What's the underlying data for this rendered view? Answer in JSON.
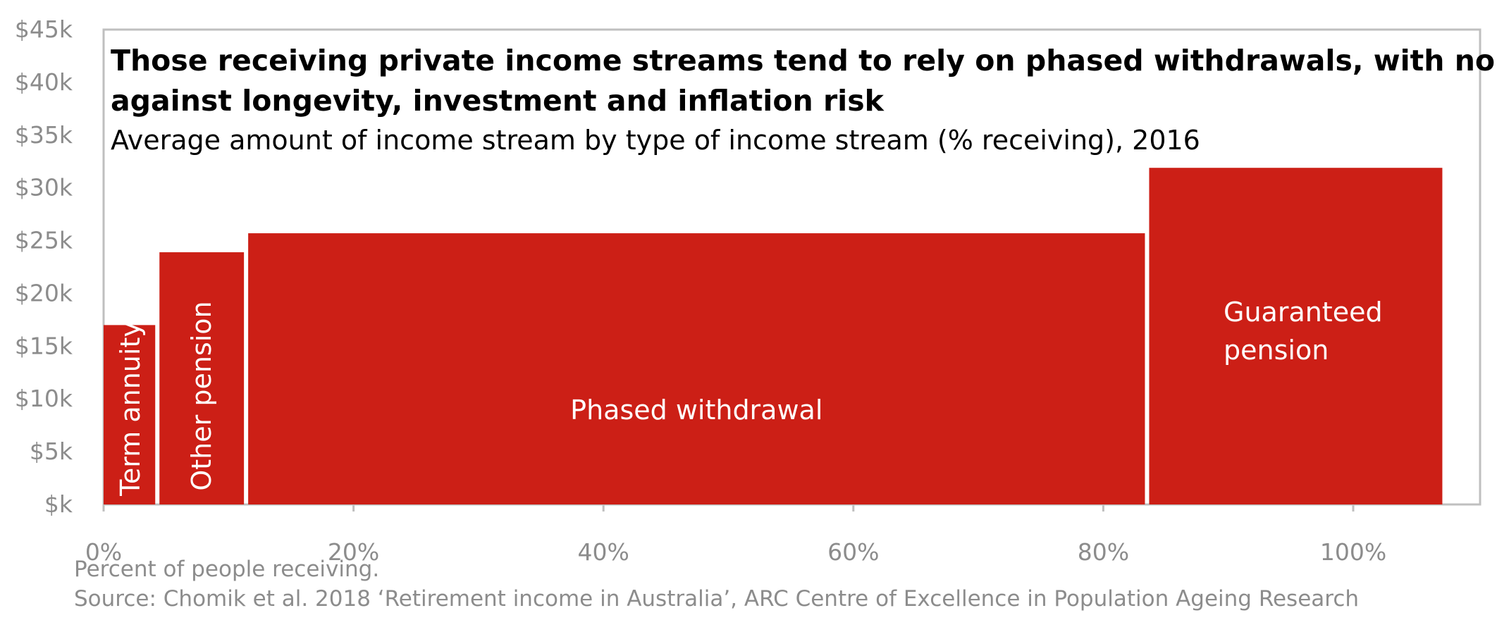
{
  "chart_data": {
    "type": "bar",
    "title": "Those receiving private income streams tend to rely on phased withdrawals, with no cover against longevity, investment and inflation risk",
    "title_lines": [
      "Those receiving private income streams tend to rely on phased withdrawals, with no cover",
      "against longevity, investment and inflation risk"
    ],
    "subtitle": "Average amount of income stream by type of income stream (% receiving), 2016",
    "xlabel": "Percent of people receiving.",
    "source": "Source: Chomik et al. 2018 ‘Retirement income in Australia’, ARC Centre of Excellence in Population Ageing Research",
    "ylim": [
      0,
      45000
    ],
    "xlim": [
      0,
      110
    ],
    "yticks": [
      {
        "value": 0,
        "label": "$k"
      },
      {
        "value": 5000,
        "label": "$5k"
      },
      {
        "value": 10000,
        "label": "$10k"
      },
      {
        "value": 15000,
        "label": "$15k"
      },
      {
        "value": 20000,
        "label": "$20k"
      },
      {
        "value": 25000,
        "label": "$25k"
      },
      {
        "value": 30000,
        "label": "$30k"
      },
      {
        "value": 35000,
        "label": "$35k"
      },
      {
        "value": 40000,
        "label": "$40k"
      },
      {
        "value": 45000,
        "label": "$45k"
      }
    ],
    "xticks": [
      {
        "value": 0,
        "label": "0%"
      },
      {
        "value": 20,
        "label": "20%"
      },
      {
        "value": 40,
        "label": "40%"
      },
      {
        "value": 60,
        "label": "60%"
      },
      {
        "value": 80,
        "label": "80%"
      },
      {
        "value": 100,
        "label": "100%"
      }
    ],
    "bars": [
      {
        "label": "Term annuity",
        "label_lines": [
          "Term annuity"
        ],
        "x_start": 0,
        "x_end": 4.3,
        "value": 17000
      },
      {
        "label": "Other pension",
        "label_lines": [
          "Other pension"
        ],
        "x_start": 4.3,
        "x_end": 11.4,
        "value": 23900
      },
      {
        "label": "Phased withdrawal",
        "label_lines": [
          "Phased withdrawal"
        ],
        "x_start": 11.4,
        "x_end": 83.5,
        "value": 25700
      },
      {
        "label": "Guaranteed pension",
        "label_lines": [
          "Guaranteed",
          "pension"
        ],
        "x_start": 83.5,
        "x_end": 107.3,
        "value": 31900
      }
    ],
    "colors": {
      "bar": "#cc1f16",
      "axis": "#bfbfbf",
      "tick_text": "#8c8c8c"
    }
  }
}
